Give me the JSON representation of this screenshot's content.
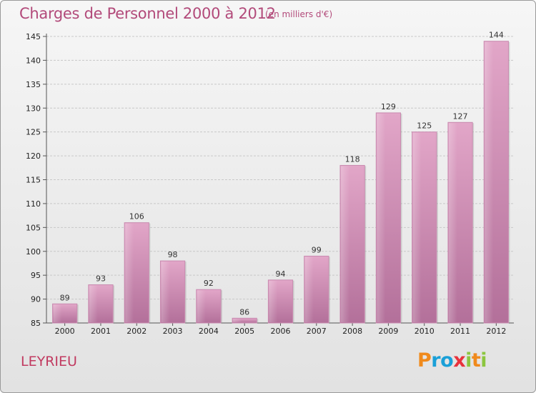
{
  "title": "Charges de Personnel 2000 à 2012",
  "subtitle": "(en milliers d'€)",
  "commune": "LEYRIEU",
  "logo": {
    "text": [
      "P",
      "r",
      "o",
      "x",
      "i",
      "t",
      "i"
    ],
    "colors": [
      "#f08a1c",
      "#1aa0d8",
      "#1aa0d8",
      "#e8323c",
      "#8cc63f",
      "#f08a1c",
      "#8cc63f"
    ]
  },
  "colors": {
    "bar": "#d88fb6",
    "bar_dark": "#b0658f",
    "title": "#b24a7a",
    "commune": "#c13a60",
    "grid": "#c8c8c8"
  },
  "chart_data": {
    "type": "bar",
    "title": "Charges de Personnel 2000 à 2012",
    "subtitle": "(en milliers d'€)",
    "categories": [
      "2000",
      "2001",
      "2002",
      "2003",
      "2004",
      "2005",
      "2006",
      "2007",
      "2008",
      "2009",
      "2010",
      "2011",
      "2012"
    ],
    "values": [
      89,
      93,
      106,
      98,
      92,
      86,
      94,
      99,
      118,
      129,
      125,
      127,
      144
    ],
    "ylim": [
      85,
      145
    ],
    "yticks": [
      85,
      90,
      95,
      100,
      105,
      110,
      115,
      120,
      125,
      130,
      135,
      140,
      145
    ],
    "grid": true,
    "xlabel": "",
    "ylabel": ""
  }
}
